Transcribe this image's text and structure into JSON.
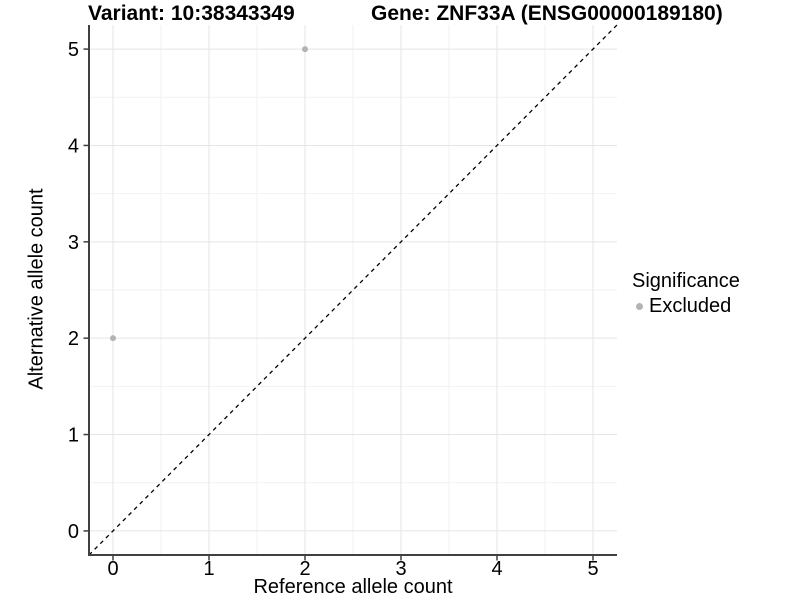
{
  "chart_data": {
    "type": "scatter",
    "titles": {
      "left": "Variant: 10:38343349",
      "right": "Gene: ZNF33A (ENSG00000189180)"
    },
    "xlabel": "Reference allele count",
    "ylabel": "Alternative allele count",
    "xlim": [
      -0.25,
      5.25
    ],
    "ylim": [
      -0.25,
      5.25
    ],
    "x_ticks": [
      0,
      1,
      2,
      3,
      4,
      5
    ],
    "y_ticks": [
      0,
      1,
      2,
      3,
      4,
      5
    ],
    "minor_ticks": [
      0.5,
      1.5,
      2.5,
      3.5,
      4.5
    ],
    "grid": "major+minor",
    "series": [
      {
        "name": "Excluded",
        "color": "#b3b3b3",
        "points": [
          {
            "x": 0,
            "y": 2
          },
          {
            "x": 2,
            "y": 5
          }
        ]
      }
    ],
    "reference_line": {
      "type": "identity (y = x)",
      "style": "dashed",
      "color": "#000000"
    },
    "legend": {
      "title": "Significance",
      "position": "right",
      "items": [
        {
          "label": "Excluded",
          "color": "#b3b3b3"
        }
      ]
    },
    "colors": {
      "background": "#ffffff",
      "grid_major": "#e5e5e5",
      "grid_minor": "#f2f2f2",
      "axis": "#404040",
      "text": "#000000"
    }
  }
}
